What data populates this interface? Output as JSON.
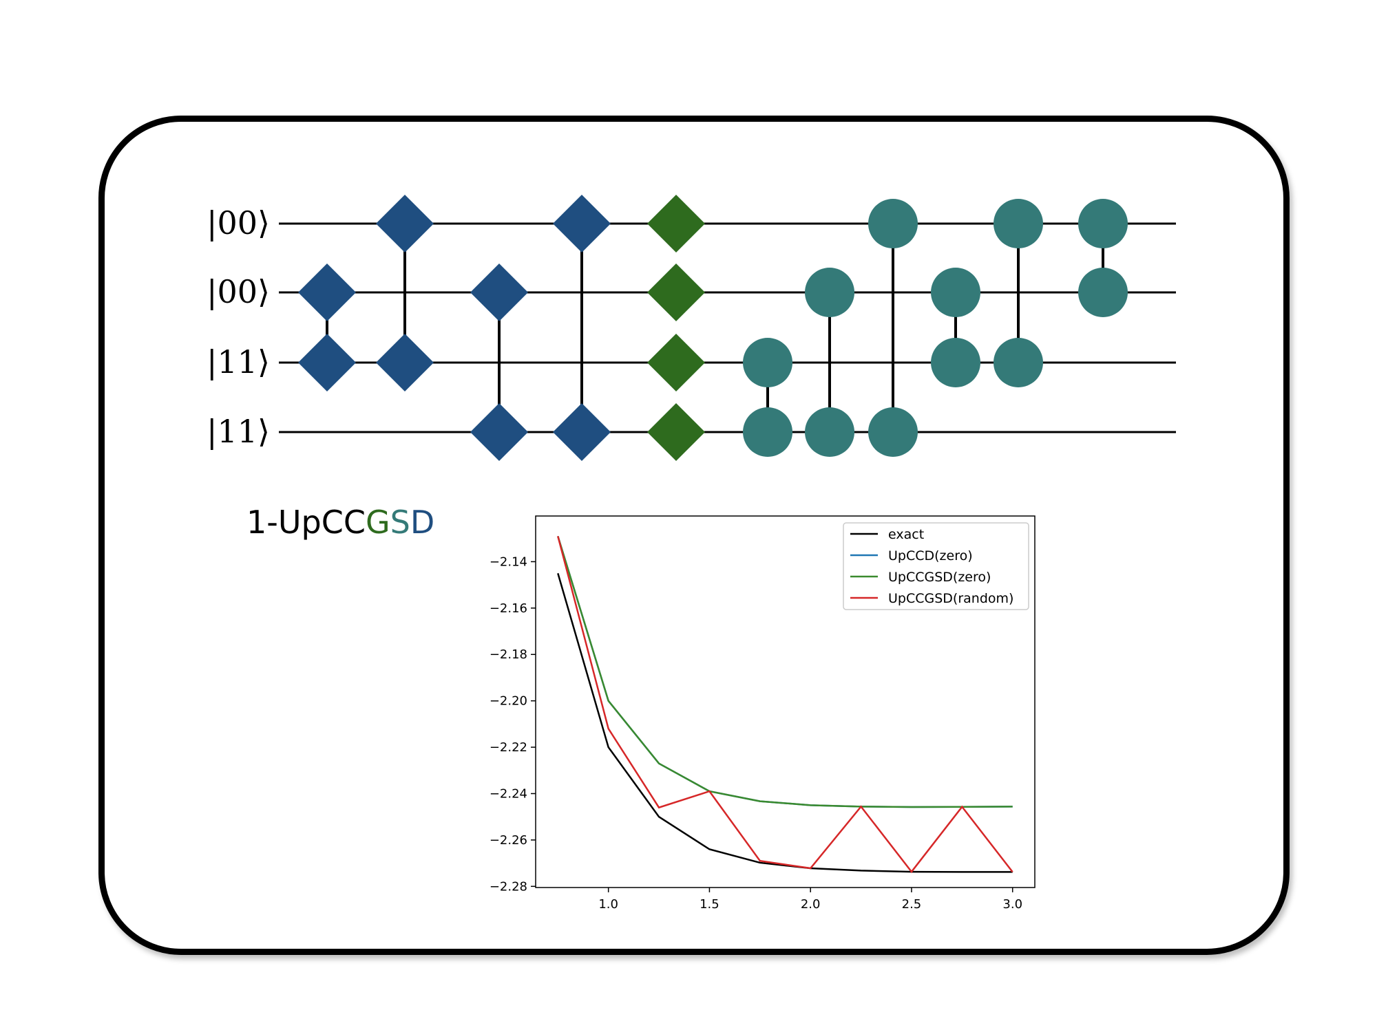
{
  "circuit": {
    "kets": [
      "|00⟩",
      "|00⟩",
      "|11⟩",
      "|11⟩"
    ],
    "colors": {
      "blue": "#1f4e80",
      "green": "#2e6b1e",
      "teal": "#347a78"
    }
  },
  "title": {
    "prefix": "1-UpCC",
    "g": "G",
    "s": "S",
    "d": "D",
    "colors": {
      "g": "#2e6b1e",
      "s": "#347a78",
      "d": "#1f4e80"
    }
  },
  "chart_data": {
    "type": "line",
    "x": [
      0.75,
      1.0,
      1.25,
      1.5,
      1.75,
      2.0,
      2.25,
      2.5,
      2.75,
      3.0
    ],
    "xticks": [
      "1.0",
      "1.5",
      "2.0",
      "2.5",
      "3.0"
    ],
    "yticks": [
      "−2.14",
      "−2.16",
      "−2.18",
      "−2.20",
      "−2.22",
      "−2.24",
      "−2.26",
      "−2.28"
    ],
    "xlim": [
      0.64,
      3.11
    ],
    "ylim": [
      -2.2805,
      -2.1203
    ],
    "legend_position": "top-right",
    "series": [
      {
        "name": "exact",
        "color": "#000000",
        "values": [
          -2.145,
          -2.22,
          -2.25,
          -2.264,
          -2.2698,
          -2.2722,
          -2.2732,
          -2.2737,
          -2.2738,
          -2.2738
        ]
      },
      {
        "name": "UpCCD(zero)",
        "color": "#1f77b4",
        "values": [
          -2.129,
          -2.2,
          -2.227,
          -2.239,
          -2.2433,
          -2.245,
          -2.2456,
          -2.2458,
          -2.2457,
          -2.2456
        ]
      },
      {
        "name": "UpCCGSD(zero)",
        "color": "#3a8a2e",
        "values": [
          -2.129,
          -2.2,
          -2.227,
          -2.239,
          -2.2433,
          -2.245,
          -2.2456,
          -2.2458,
          -2.2457,
          -2.2456
        ]
      },
      {
        "name": "UpCCGSD(random)",
        "color": "#d62728",
        "values": [
          -2.129,
          -2.212,
          -2.246,
          -2.239,
          -2.269,
          -2.2722,
          -2.2456,
          -2.2737,
          -2.2457,
          -2.2738
        ]
      }
    ]
  }
}
